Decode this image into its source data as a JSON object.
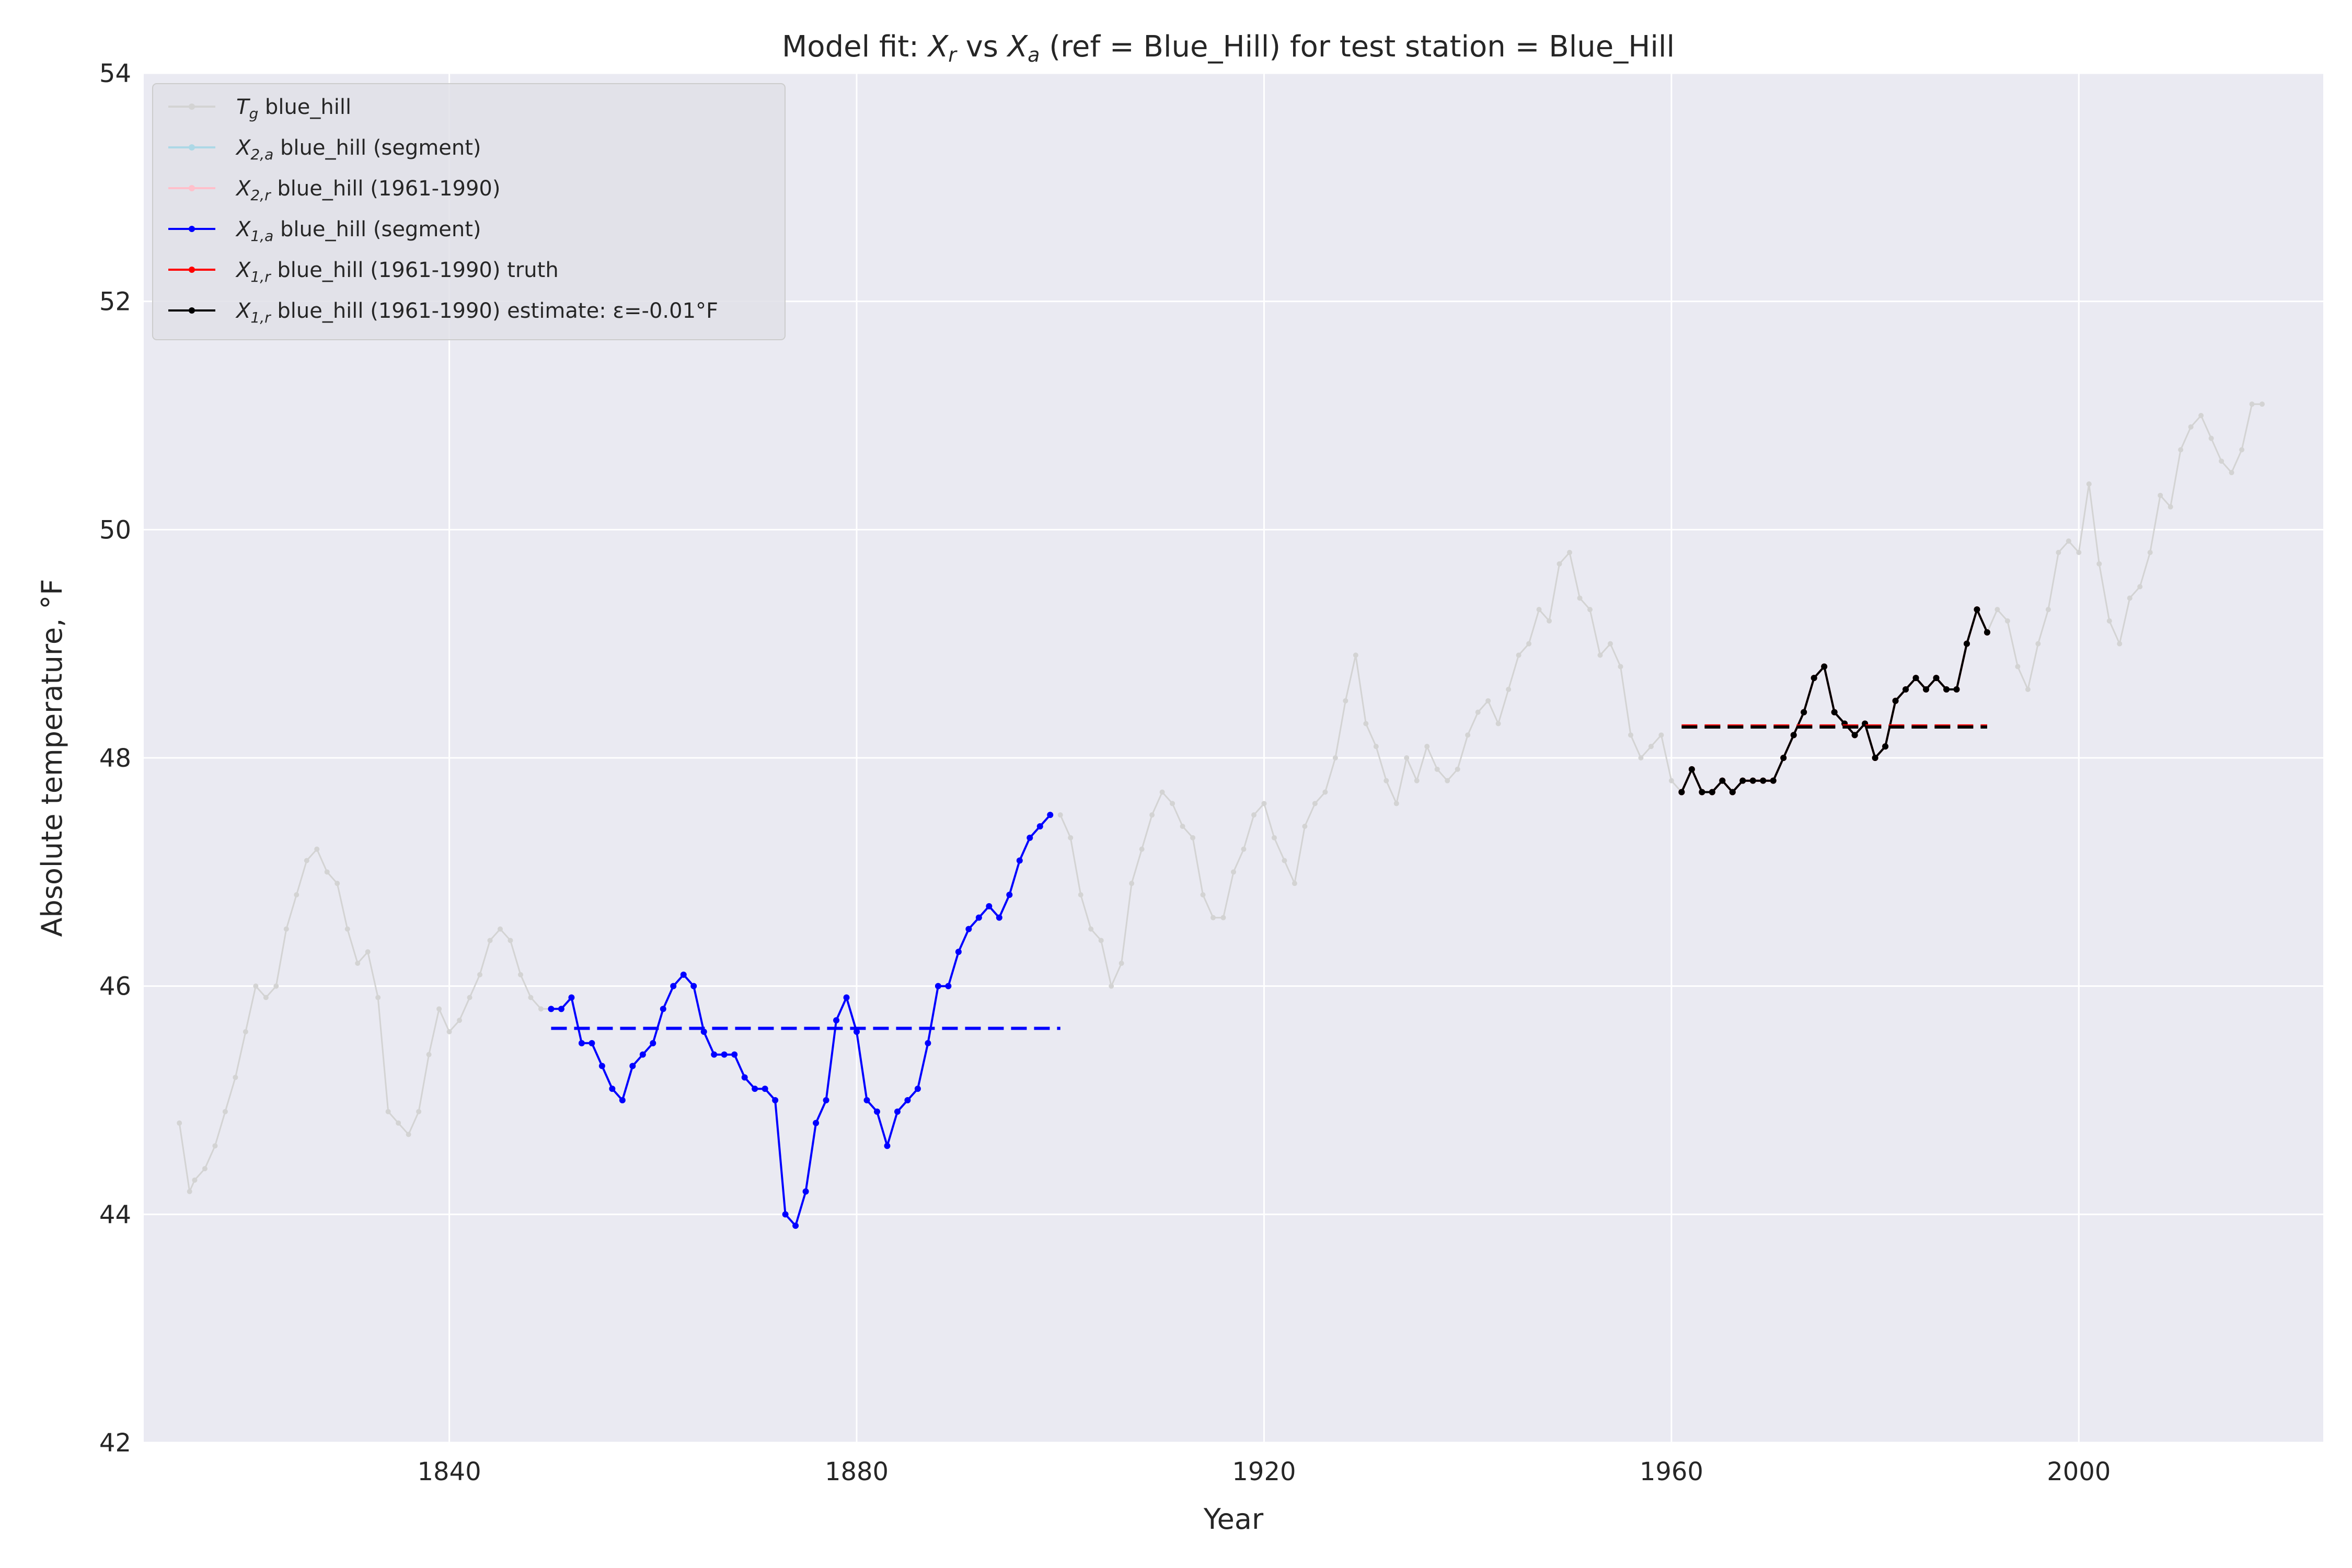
{
  "chart_data": {
    "type": "line",
    "title": "Model fit: X_r vs X_a (ref = Blue_Hill) for test station = Blue_Hill",
    "title_parts": {
      "prefix": "Model fit: ",
      "x1": "X",
      "s1": "r",
      "mid": " vs ",
      "x2": "X",
      "s2": "a",
      "suffix": " (ref = Blue_Hill) for test station = Blue_Hill"
    },
    "xlabel": "Year",
    "ylabel": "Absolute temperature, °F",
    "xlim": [
      1810,
      2024
    ],
    "ylim": [
      42,
      54
    ],
    "xticks": [
      1840,
      1880,
      1920,
      1960,
      2000
    ],
    "yticks": [
      42,
      44,
      46,
      48,
      50,
      52,
      54
    ],
    "grid": true,
    "legend_position": "top-left",
    "colors": {
      "background": "#eaeaf2",
      "grid": "#ffffff",
      "tg": "#d3d3d3",
      "x2a": "#add8e6",
      "x2r": "#ffc0cb",
      "x1a": "#0000ff",
      "x1r_truth": "#ff0000",
      "x1r_est": "#000000"
    },
    "series": [
      {
        "name": "T_g blue_hill",
        "legend_label": {
          "sym": "T",
          "sub": "g",
          "text": " blue_hill"
        },
        "color": "#d3d3d3",
        "x": [
          1813.5,
          1814.5,
          1815,
          1816,
          1817,
          1818,
          1819,
          1820,
          1821,
          1822,
          1823,
          1824,
          1825,
          1826,
          1827,
          1828,
          1829,
          1830,
          1831,
          1832,
          1833,
          1834,
          1835,
          1836,
          1837,
          1838,
          1839,
          1840,
          1841,
          1842,
          1843,
          1844,
          1845,
          1846,
          1847,
          1848,
          1849,
          1850,
          1900,
          1901,
          1902,
          1903,
          1904,
          1905,
          1906,
          1907,
          1908,
          1909,
          1910,
          1911,
          1912,
          1913,
          1914,
          1915,
          1916,
          1917,
          1918,
          1919,
          1920,
          1921,
          1922,
          1923,
          1924,
          1925,
          1926,
          1927,
          1928,
          1929,
          1930,
          1931,
          1932,
          1933,
          1934,
          1935,
          1936,
          1937,
          1938,
          1939,
          1940,
          1941,
          1942,
          1943,
          1944,
          1945,
          1946,
          1947,
          1948,
          1949,
          1950,
          1951,
          1952,
          1953,
          1954,
          1955,
          1956,
          1957,
          1958,
          1959,
          1960,
          1961,
          1991,
          1992,
          1993,
          1994,
          1995,
          1996,
          1997,
          1998,
          1999,
          2000,
          2001,
          2002,
          2003,
          2004,
          2005,
          2006,
          2007,
          2008,
          2009,
          2010,
          2011,
          2012,
          2013,
          2014,
          2015,
          2016,
          2017,
          2018
        ],
        "values": [
          44.8,
          44.2,
          44.3,
          44.4,
          44.6,
          44.9,
          45.2,
          45.6,
          46.0,
          45.9,
          46.0,
          46.5,
          46.8,
          47.1,
          47.2,
          47.0,
          46.9,
          46.5,
          46.2,
          46.3,
          45.9,
          44.9,
          44.8,
          44.7,
          44.9,
          45.4,
          45.8,
          45.6,
          45.7,
          45.9,
          46.1,
          46.4,
          46.5,
          46.4,
          46.1,
          45.9,
          45.8,
          45.8,
          47.5,
          47.3,
          46.8,
          46.5,
          46.4,
          46.0,
          46.2,
          46.9,
          47.2,
          47.5,
          47.7,
          47.6,
          47.4,
          47.3,
          46.8,
          46.6,
          46.6,
          47.0,
          47.2,
          47.5,
          47.6,
          47.3,
          47.1,
          46.9,
          47.4,
          47.6,
          47.7,
          48.0,
          48.5,
          48.9,
          48.3,
          48.1,
          47.8,
          47.6,
          48.0,
          47.8,
          48.1,
          47.9,
          47.8,
          47.9,
          48.2,
          48.4,
          48.5,
          48.3,
          48.6,
          48.9,
          49.0,
          49.3,
          49.2,
          49.7,
          49.8,
          49.4,
          49.3,
          48.9,
          49.0,
          48.8,
          48.2,
          48.0,
          48.1,
          48.2,
          47.8,
          47.7,
          49.1,
          49.3,
          49.2,
          48.8,
          48.6,
          49.0,
          49.3,
          49.8,
          49.9,
          49.8,
          50.4,
          49.7,
          49.2,
          49.0,
          49.4,
          49.5,
          49.8,
          50.3,
          50.2,
          50.7,
          50.9,
          51.0,
          50.8,
          50.6,
          50.5,
          50.7,
          51.1,
          51.1
        ]
      },
      {
        "name": "X_2,a blue_hill (segment)",
        "legend_label": {
          "sym": "X",
          "sub": "2,a",
          "text": " blue_hill (segment)"
        },
        "color": "#add8e6",
        "x": [],
        "values": []
      },
      {
        "name": "X_2,r blue_hill (1961-1990)",
        "legend_label": {
          "sym": "X",
          "sub": "2,r",
          "text": " blue_hill (1961-1990)"
        },
        "color": "#ffc0cb",
        "x": [],
        "values": []
      },
      {
        "name": "X_1,a blue_hill (segment)",
        "legend_label": {
          "sym": "X",
          "sub": "1,a",
          "text": " blue_hill (segment)"
        },
        "color": "#0000ff",
        "x": [
          1850,
          1851,
          1852,
          1853,
          1854,
          1855,
          1856,
          1857,
          1858,
          1859,
          1860,
          1861,
          1862,
          1863,
          1864,
          1865,
          1866,
          1867,
          1868,
          1869,
          1870,
          1871,
          1872,
          1873,
          1874,
          1875,
          1876,
          1877,
          1878,
          1879,
          1880,
          1881,
          1882,
          1883,
          1884,
          1885,
          1886,
          1887,
          1888,
          1889,
          1890,
          1891,
          1892,
          1893,
          1894,
          1895,
          1896,
          1897,
          1898,
          1899
        ],
        "values": [
          45.8,
          45.8,
          45.9,
          45.5,
          45.5,
          45.3,
          45.1,
          45.0,
          45.3,
          45.4,
          45.5,
          45.8,
          46.0,
          46.1,
          46.0,
          45.6,
          45.4,
          45.4,
          45.4,
          45.2,
          45.1,
          45.1,
          45.0,
          44.0,
          43.9,
          44.2,
          44.8,
          45.0,
          45.7,
          45.9,
          45.6,
          45.0,
          44.9,
          44.6,
          44.9,
          45.0,
          45.1,
          45.5,
          46.0,
          46.0,
          46.3,
          46.5,
          46.6,
          46.7,
          46.6,
          46.8,
          47.1,
          47.3,
          47.4,
          47.5
        ]
      },
      {
        "name": "X_1,r blue_hill (1961-1990) truth",
        "legend_label": {
          "sym": "X",
          "sub": "1,r",
          "text": " blue_hill (1961-1990) truth"
        },
        "color": "#ff0000",
        "x": [
          1961,
          1962,
          1963,
          1964,
          1965,
          1966,
          1967,
          1968,
          1969,
          1970,
          1971,
          1972,
          1973,
          1974,
          1975,
          1976,
          1977,
          1978,
          1979,
          1980,
          1981,
          1982,
          1983,
          1984,
          1985,
          1986,
          1987,
          1988,
          1989,
          1990,
          1991
        ],
        "values": [
          47.7,
          47.9,
          47.7,
          47.7,
          47.8,
          47.7,
          47.8,
          47.8,
          47.8,
          47.8,
          48.0,
          48.2,
          48.4,
          48.7,
          48.8,
          48.4,
          48.3,
          48.2,
          48.3,
          48.0,
          48.1,
          48.5,
          48.6,
          48.7,
          48.6,
          48.7,
          48.6,
          48.6,
          49.0,
          49.3,
          49.1
        ]
      },
      {
        "name": "X_1,r blue_hill (1961-1990) estimate: ε=-0.01°F",
        "legend_label": {
          "sym": "X",
          "sub": "1,r",
          "text": " blue_hill (1961-1990) estimate: ε=-0.01°F"
        },
        "color": "#000000",
        "x": [
          1961,
          1962,
          1963,
          1964,
          1965,
          1966,
          1967,
          1968,
          1969,
          1970,
          1971,
          1972,
          1973,
          1974,
          1975,
          1976,
          1977,
          1978,
          1979,
          1980,
          1981,
          1982,
          1983,
          1984,
          1985,
          1986,
          1987,
          1988,
          1989,
          1990,
          1991
        ],
        "values": [
          47.7,
          47.9,
          47.7,
          47.7,
          47.8,
          47.7,
          47.8,
          47.8,
          47.8,
          47.8,
          48.0,
          48.2,
          48.4,
          48.7,
          48.8,
          48.4,
          48.3,
          48.2,
          48.3,
          48.0,
          48.1,
          48.5,
          48.6,
          48.7,
          48.6,
          48.7,
          48.6,
          48.6,
          49.0,
          49.3,
          49.1
        ]
      }
    ],
    "reference_lines": [
      {
        "color": "#0000ff",
        "x": [
          1850,
          1900
        ],
        "y": 45.63
      },
      {
        "color": "#ff0000",
        "x": [
          1961,
          1991
        ],
        "y": 48.28
      },
      {
        "color": "#000000",
        "x": [
          1961,
          1991
        ],
        "y": 48.27
      }
    ]
  }
}
